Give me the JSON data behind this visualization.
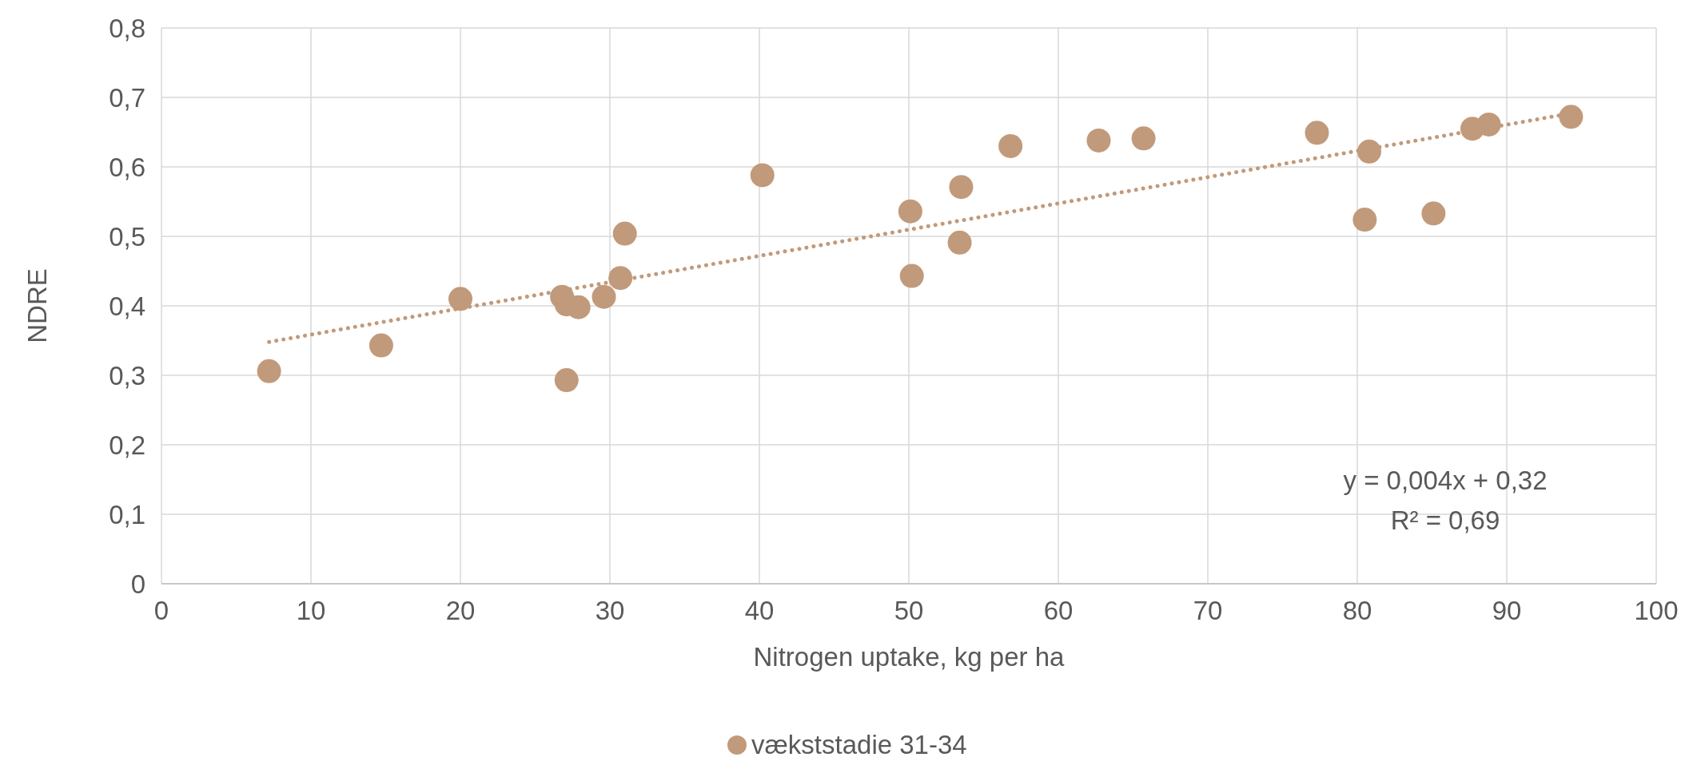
{
  "chart_data": {
    "type": "scatter",
    "xlabel": "Nitrogen uptake, kg per ha",
    "ylabel": "NDRE",
    "xlim": [
      0,
      100
    ],
    "xticks": [
      0,
      10,
      20,
      30,
      40,
      50,
      60,
      70,
      80,
      90,
      100
    ],
    "ylim": [
      0,
      0.8
    ],
    "yticks": [
      0,
      {
        "value": 0.1,
        "label": "0,1"
      },
      {
        "value": 0.2,
        "label": "0,2"
      },
      {
        "value": 0.3,
        "label": "0,3"
      },
      {
        "value": 0.4,
        "label": "0,4"
      },
      {
        "value": 0.5,
        "label": "0,5"
      },
      {
        "value": 0.6,
        "label": "0,6"
      },
      {
        "value": 0.7,
        "label": "0,7"
      },
      {
        "value": 0.8,
        "label": "0,8"
      }
    ],
    "grid": true,
    "legend": "bottom",
    "marker": "circle",
    "series": [
      {
        "name": "vækststadie 31-34",
        "color": "#c19a7b",
        "x": [
          7.2,
          14.7,
          20.0,
          26.8,
          27.1,
          27.9,
          27.1,
          29.6,
          30.7,
          31.0,
          40.2,
          50.1,
          50.2,
          53.4,
          53.5,
          56.8,
          62.7,
          65.7,
          77.3,
          80.8,
          80.5,
          85.1,
          87.7,
          88.8,
          94.3
        ],
        "values": [
          0.306,
          0.343,
          0.41,
          0.413,
          0.402,
          0.398,
          0.293,
          0.413,
          0.44,
          0.504,
          0.588,
          0.536,
          0.443,
          0.491,
          0.571,
          0.63,
          0.638,
          0.641,
          0.649,
          0.622,
          0.524,
          0.533,
          0.655,
          0.661,
          0.672
        ]
      },
      {
        "type": "line",
        "color": "#c19a7b",
        "line_style": "dotted",
        "marker": "none",
        "x": [
          7.2,
          94.3
        ],
        "values": [
          0.348,
          0.677
        ]
      }
    ],
    "annotations": [
      "y = 0,004x + 0,32",
      "R² = 0,69"
    ]
  }
}
